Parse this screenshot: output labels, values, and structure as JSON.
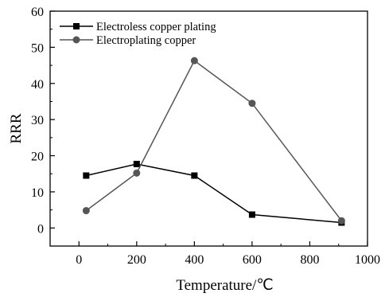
{
  "chart_data": {
    "type": "line",
    "xlabel": "Temperature/℃",
    "ylabel": "RRR",
    "xlim": [
      -100,
      1000
    ],
    "ylim": [
      -5,
      60
    ],
    "xticks": [
      0,
      200,
      400,
      600,
      800,
      1000
    ],
    "yticks": [
      0,
      10,
      20,
      30,
      40,
      50,
      60
    ],
    "grid": false,
    "legend": "top-left",
    "series": [
      {
        "name": "Electroless copper plating",
        "marker": "square",
        "color": "#000000",
        "x": [
          25,
          200,
          400,
          600,
          910
        ],
        "y": [
          14.5,
          17.7,
          14.5,
          3.7,
          1.5
        ]
      },
      {
        "name": "Electroplating copper",
        "marker": "circle",
        "color": "#555555",
        "x": [
          25,
          200,
          400,
          600,
          910
        ],
        "y": [
          4.8,
          15.2,
          46.3,
          34.5,
          2.0
        ]
      }
    ]
  }
}
